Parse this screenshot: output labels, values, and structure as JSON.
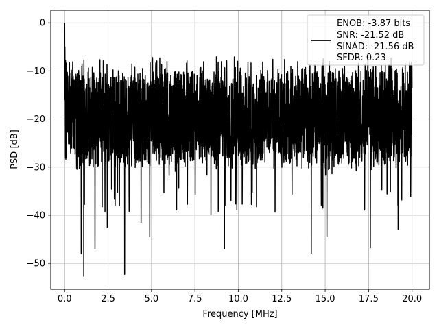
{
  "chart_data": {
    "type": "line",
    "title": "",
    "xlabel": "Frequency [MHz]",
    "ylabel": "PSD [dB]",
    "xlim": [
      -0.8,
      21.0
    ],
    "ylim": [
      -55.4,
      2.6
    ],
    "xticks": [
      0.0,
      2.5,
      5.0,
      7.5,
      10.0,
      12.5,
      15.0,
      17.5,
      20.0
    ],
    "xtick_labels": [
      "0.0",
      "2.5",
      "5.0",
      "7.5",
      "10.0",
      "12.5",
      "15.0",
      "17.5",
      "20.0"
    ],
    "yticks": [
      0,
      -10,
      -20,
      -30,
      -40,
      -50
    ],
    "ytick_labels": [
      "0",
      "−10",
      "−20",
      "−30",
      "−40",
      "−50"
    ],
    "grid": true,
    "legend_position": "top-right",
    "series": [
      {
        "color": "#000000",
        "description": "dense noise-like spectrum, roughly uniform across band; spike to 0 dB at 0 MHz",
        "x_range": [
          0.0,
          20.0
        ],
        "band_upper_approx": -10,
        "band_lower_approx": -30,
        "peak": {
          "x": 0.0,
          "y": 0.0
        },
        "notable_dips": [
          {
            "x": 0.95,
            "y": -48
          },
          {
            "x": 1.1,
            "y": -52.7
          },
          {
            "x": 1.75,
            "y": -47
          },
          {
            "x": 2.45,
            "y": -42.5
          },
          {
            "x": 3.45,
            "y": -52.3
          },
          {
            "x": 4.4,
            "y": -41.5
          },
          {
            "x": 4.9,
            "y": -44.5
          },
          {
            "x": 9.2,
            "y": -47
          },
          {
            "x": 14.2,
            "y": -47.9
          },
          {
            "x": 15.1,
            "y": -44.5
          },
          {
            "x": 17.6,
            "y": -46.8
          },
          {
            "x": 19.2,
            "y": -43
          }
        ]
      }
    ],
    "legend_lines": [
      "ENOB: -3.87 bits",
      "SNR: -21.52 dB",
      "SINAD: -21.56 dB",
      "SFDR: 0.23"
    ]
  }
}
